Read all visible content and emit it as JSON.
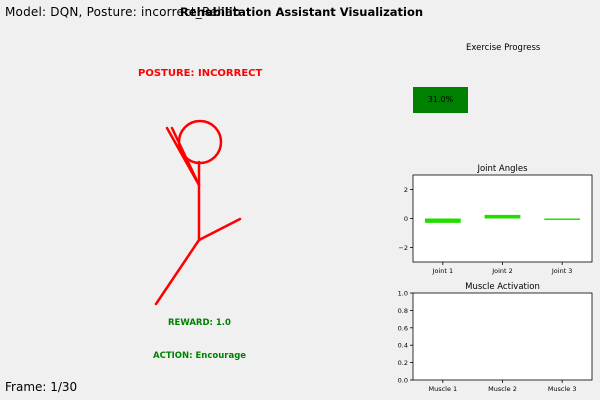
{
  "hud": {
    "model_label": "Model: DQN, Posture: incorrect_Rehab",
    "title": "Rehabilitation Assistant Visualization",
    "frame_label": "Frame: 1/30"
  },
  "figure": {
    "posture_text": "POSTURE: INCORRECT",
    "reward_text": "REWARD: 1.0",
    "action_text": "ACTION: Encourage"
  },
  "colors": {
    "figure": "#ff0000",
    "positive": "#008000",
    "bar_green": "#22dd00"
  },
  "exercise_progress": {
    "title": "Exercise Progress",
    "value": 0.31,
    "label": "31.0%"
  },
  "chart_data": [
    {
      "type": "bar",
      "title": "Joint Angles",
      "categories": [
        "Joint 1",
        "Joint 2",
        "Joint 3"
      ],
      "values": [
        -0.3,
        0.25,
        -0.1
      ],
      "ylim": [
        -3,
        3
      ],
      "yticks": [
        -2,
        0,
        2
      ],
      "tick_labels": [
        "−2",
        "0",
        "2"
      ]
    },
    {
      "type": "bar",
      "title": "Muscle Activation",
      "categories": [
        "Muscle 1",
        "Muscle 2",
        "Muscle 3"
      ],
      "values": [
        0,
        0,
        0
      ],
      "ylim": [
        0,
        1
      ],
      "yticks": [
        0,
        0.2,
        0.4,
        0.6,
        0.8,
        1
      ],
      "tick_labels": [
        "0.0",
        "0.2",
        "0.4",
        "0.6",
        "0.8",
        "1.0"
      ]
    }
  ]
}
